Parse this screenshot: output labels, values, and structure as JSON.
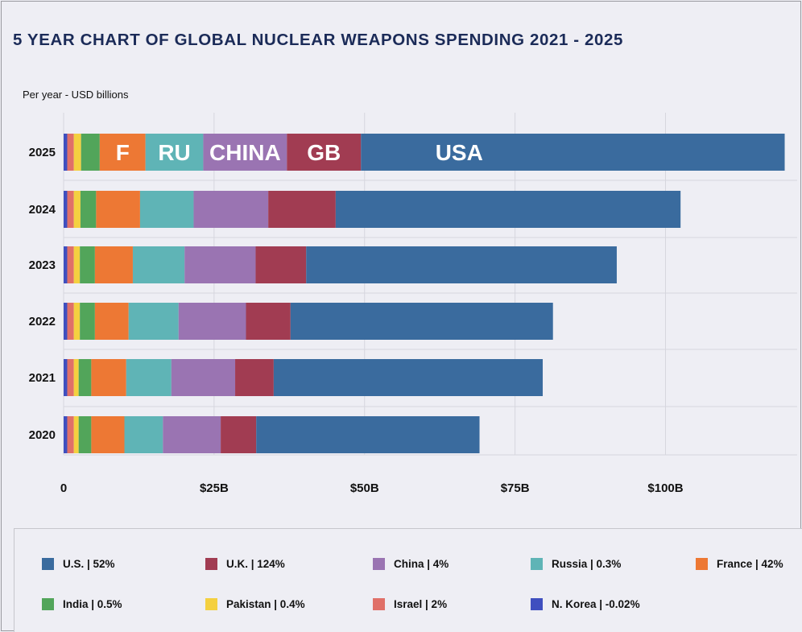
{
  "chart_data": {
    "type": "bar",
    "orientation": "horizontal",
    "stacked": true,
    "title": "5 YEAR CHART OF GLOBAL NUCLEAR WEAPONS SPENDING 2021 - 2025",
    "subtitle": "Per year - USD billions",
    "xlim": [
      0,
      120
    ],
    "x_ticks": [
      {
        "value": 0,
        "label": "0"
      },
      {
        "value": 25,
        "label": "$25B"
      },
      {
        "value": 50,
        "label": "$50B"
      },
      {
        "value": 75,
        "label": "$75B"
      },
      {
        "value": 100,
        "label": "$100B"
      }
    ],
    "grid": true,
    "legend_position": "bottom",
    "categories": [
      "2025",
      "2024",
      "2023",
      "2022",
      "2021",
      "2020"
    ],
    "series": [
      {
        "name": "N. Korea",
        "legend_label": "N. Korea | -0.02%",
        "color": "#3f4fbf",
        "values": [
          0.6,
          0.6,
          0.6,
          0.6,
          0.6,
          0.6
        ]
      },
      {
        "name": "Israel",
        "legend_label": "Israel | 2%",
        "color": "#e07068",
        "values": [
          1.1,
          1.1,
          1.1,
          1.1,
          1.1,
          1.1
        ]
      },
      {
        "name": "Pakistan",
        "legend_label": "Pakistan | 0.4%",
        "color": "#f4d040",
        "values": [
          1.2,
          1.1,
          1.0,
          1.0,
          0.8,
          0.8
        ]
      },
      {
        "name": "India",
        "legend_label": "India | 0.5%",
        "color": "#52a55a",
        "values": [
          3.1,
          2.6,
          2.5,
          2.5,
          2.1,
          2.1
        ]
      },
      {
        "name": "France",
        "legend_label": "France | 42%",
        "color": "#ed7834",
        "values": [
          7.6,
          7.3,
          6.3,
          5.6,
          5.8,
          5.5
        ]
      },
      {
        "name": "Russia",
        "legend_label": "Russia | 0.3%",
        "color": "#5fb4b6",
        "values": [
          9.6,
          8.9,
          8.6,
          8.3,
          7.5,
          6.4
        ]
      },
      {
        "name": "China",
        "legend_label": "China | 4%",
        "color": "#9a74b2",
        "values": [
          13.9,
          12.4,
          11.8,
          11.2,
          10.6,
          9.6
        ]
      },
      {
        "name": "U.K.",
        "legend_label": "U.K. | 124%",
        "color": "#a13c52",
        "values": [
          12.3,
          11.2,
          8.4,
          7.4,
          6.4,
          5.9
        ]
      },
      {
        "name": "U.S.",
        "legend_label": "U.S. | 52%",
        "color": "#3a6b9e",
        "values": [
          70.4,
          57.3,
          51.6,
          43.6,
          44.7,
          37.1
        ]
      }
    ],
    "bar_labels_2025": [
      {
        "series": "France",
        "text": "F"
      },
      {
        "series": "Russia",
        "text": "RU"
      },
      {
        "series": "China",
        "text": "CHINA"
      },
      {
        "series": "U.K.",
        "text": "GB"
      },
      {
        "series": "U.S.",
        "text": "USA"
      }
    ],
    "legend_order": [
      "U.S.",
      "U.K.",
      "China",
      "Russia",
      "France",
      "India",
      "Pakistan",
      "Israel",
      "N. Korea"
    ]
  }
}
